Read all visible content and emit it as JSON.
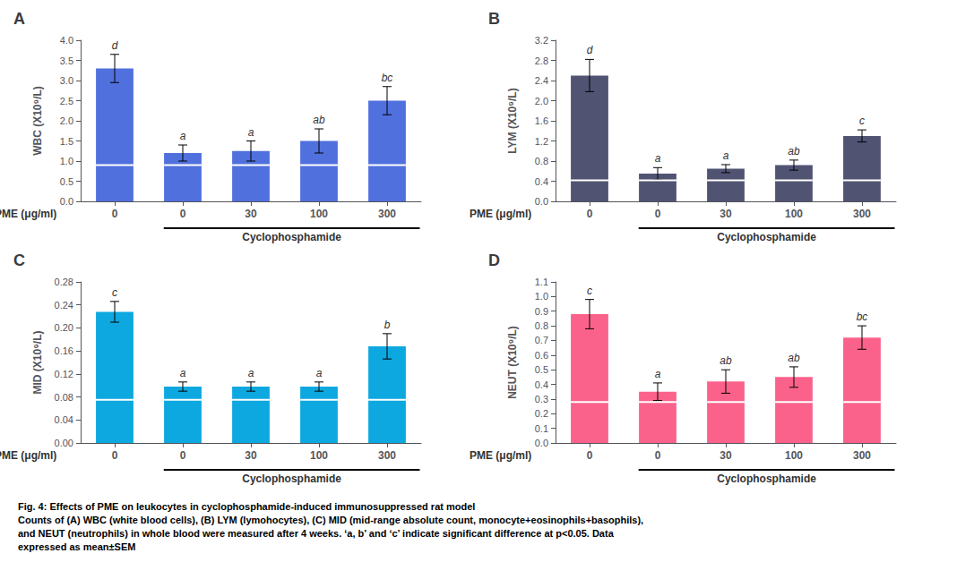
{
  "chart_data": [
    {
      "type": "bar",
      "title": "A",
      "ylabel": "WBC (X10⁹/L)",
      "xlabel": "PME (μg/ml)",
      "annotations": [
        "Cyclophosphamide"
      ],
      "categories": [
        "0",
        "0",
        "30",
        "100",
        "300"
      ],
      "values": [
        3.3,
        1.2,
        1.25,
        1.5,
        2.5
      ],
      "errors": [
        0.35,
        0.2,
        0.25,
        0.3,
        0.35
      ],
      "sig_labels": [
        "d",
        "a",
        "a",
        "ab",
        "bc"
      ],
      "hline_y": 0.9,
      "ylim": [
        0,
        4.0
      ],
      "yticks": [
        {
          "value": 0.0,
          "label": "0.0"
        },
        0.5,
        {
          "value": 1.0,
          "label": "1.0"
        },
        1.5,
        {
          "value": 2.0,
          "label": "2.0"
        },
        2.5,
        {
          "value": 3.0,
          "label": "3.0"
        },
        3.5,
        {
          "value": 4.0,
          "label": "4.0"
        }
      ],
      "grid": false
    },
    {
      "type": "bar",
      "title": "B",
      "ylabel": "LYM (X10⁹/L)",
      "xlabel": "PME (μg/ml)",
      "annotations": [
        "Cyclophosphamide"
      ],
      "categories": [
        "0",
        "0",
        "30",
        "100",
        "300"
      ],
      "values": [
        2.5,
        0.55,
        0.65,
        0.72,
        1.3
      ],
      "errors": [
        0.32,
        0.12,
        0.08,
        0.1,
        0.12
      ],
      "sig_labels": [
        "d",
        "a",
        "a",
        "ab",
        "c"
      ],
      "hline_y": 0.42,
      "ylim": [
        0,
        3.2
      ],
      "yticks": [
        {
          "value": 0.0,
          "label": "0.0"
        },
        0.4,
        0.8,
        1.2,
        1.6,
        {
          "value": 2.0,
          "label": "2.0"
        },
        2.4,
        2.8,
        3.2
      ],
      "grid": false
    },
    {
      "type": "bar",
      "title": "C",
      "ylabel": "MID (X10⁹/L)",
      "xlabel": "PME (μg/ml)",
      "annotations": [
        "Cyclophosphamide"
      ],
      "categories": [
        "0",
        "0",
        "30",
        "100",
        "300"
      ],
      "values": [
        0.228,
        0.098,
        0.098,
        0.098,
        0.168
      ],
      "errors": [
        0.018,
        0.008,
        0.008,
        0.008,
        0.022
      ],
      "sig_labels": [
        "c",
        "a",
        "a",
        "a",
        "b"
      ],
      "hline_y": 0.075,
      "ylim": [
        0,
        0.28
      ],
      "yticks": [
        {
          "value": 0.0,
          "label": "0.00"
        },
        0.04,
        0.08,
        0.12,
        0.16,
        {
          "value": 0.2,
          "label": "0.20"
        },
        0.24,
        0.28
      ],
      "grid": false
    },
    {
      "type": "bar",
      "title": "D",
      "ylabel": "NEUT (X10⁹/L)",
      "xlabel": "PME (μg/ml)",
      "annotations": [
        "Cyclophosphamide"
      ],
      "categories": [
        "0",
        "0",
        "30",
        "100",
        "300"
      ],
      "values": [
        0.88,
        0.35,
        0.42,
        0.45,
        0.72
      ],
      "errors": [
        0.1,
        0.06,
        0.08,
        0.07,
        0.08
      ],
      "sig_labels": [
        "c",
        "a",
        "ab",
        "ab",
        "bc"
      ],
      "hline_y": 0.28,
      "ylim": [
        0,
        1.1
      ],
      "yticks": [
        {
          "value": 0.0,
          "label": "0.0"
        },
        0.1,
        0.2,
        0.3,
        0.4,
        0.5,
        0.6,
        0.7,
        0.8,
        0.9,
        {
          "value": 1.0,
          "label": "1.0"
        },
        1.1
      ],
      "grid": false
    }
  ],
  "caption": [
    "Fig. 4: Effects of PME on leukocytes in cyclophosphamide-induced immunosuppressed rat model",
    "Counts of (A) WBC (white blood cells), (B) LYM (lymohocytes), (C) MID (mid-range absolute count, monocyte+eosinophils+basophils),",
    "and NEUT (neutrophils) in whole blood were measured after 4 weeks. ‘a, b’ and ‘c’ indicate significant difference at p<0.05. Data",
    "expressed as mean±SEM"
  ]
}
